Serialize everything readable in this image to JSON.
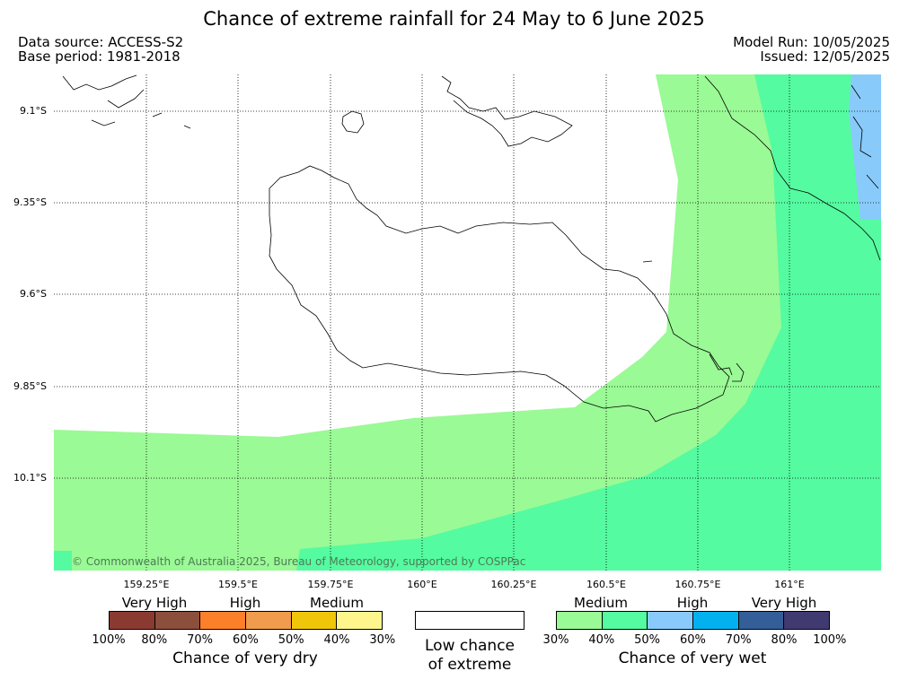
{
  "header": {
    "title": "Chance of extreme rainfall for 24 May to 6 June 2025",
    "data_source": "Data source: ACCESS-S2",
    "base_period": "Base period: 1981-2018",
    "model_run": "Model Run: 10/05/2025",
    "issued": "Issued: 12/05/2025"
  },
  "map": {
    "lat_labels": [
      "9.1°S",
      "9.35°S",
      "9.6°S",
      "9.85°S",
      "10.1°S"
    ],
    "lon_labels": [
      "159.25°E",
      "159.5°E",
      "159.75°E",
      "160°E",
      "160.25°E",
      "160.5°E",
      "160.75°E",
      "161°E"
    ],
    "copyright": "© Commonwealth of Australia 2025, Bureau of Meteorology, supported by COSPPac",
    "colors": {
      "wet_medium_30_40": "#9afa95",
      "wet_medium_40_50": "#55fba0",
      "wet_high_50_60": "#88cbfa",
      "ocean_background": "#ffffff",
      "coastline": "#000000"
    },
    "zones": [
      {
        "region": "southwest and central belt",
        "category": "30-40% chance of very wet"
      },
      {
        "region": "south and east",
        "category": "40-50% chance of very wet"
      },
      {
        "region": "far northeast corner",
        "category": "50-60% chance of very wet"
      },
      {
        "region": "northwest and island interior",
        "category": "Low chance of extreme"
      }
    ]
  },
  "legend": {
    "dry": {
      "categories": [
        "Very High",
        "High",
        "Medium"
      ],
      "ticks": [
        "100%",
        "80%",
        "70%",
        "60%",
        "50%",
        "40%",
        "30%"
      ],
      "colors": [
        "#8b3a32",
        "#8b4f3c",
        "#fc7f2a",
        "#f09c4c",
        "#f0c60b",
        "#fef68c"
      ],
      "title": "Chance of very dry"
    },
    "neutral": {
      "line1": "Low chance",
      "line2": "of extreme"
    },
    "wet": {
      "categories": [
        "Medium",
        "High",
        "Very High"
      ],
      "ticks": [
        "30%",
        "40%",
        "50%",
        "60%",
        "70%",
        "80%",
        "100%"
      ],
      "colors": [
        "#9afa95",
        "#55fba0",
        "#88cbfa",
        "#04b1ef",
        "#345e97",
        "#3f3a6f"
      ],
      "title": "Chance of very wet"
    }
  }
}
